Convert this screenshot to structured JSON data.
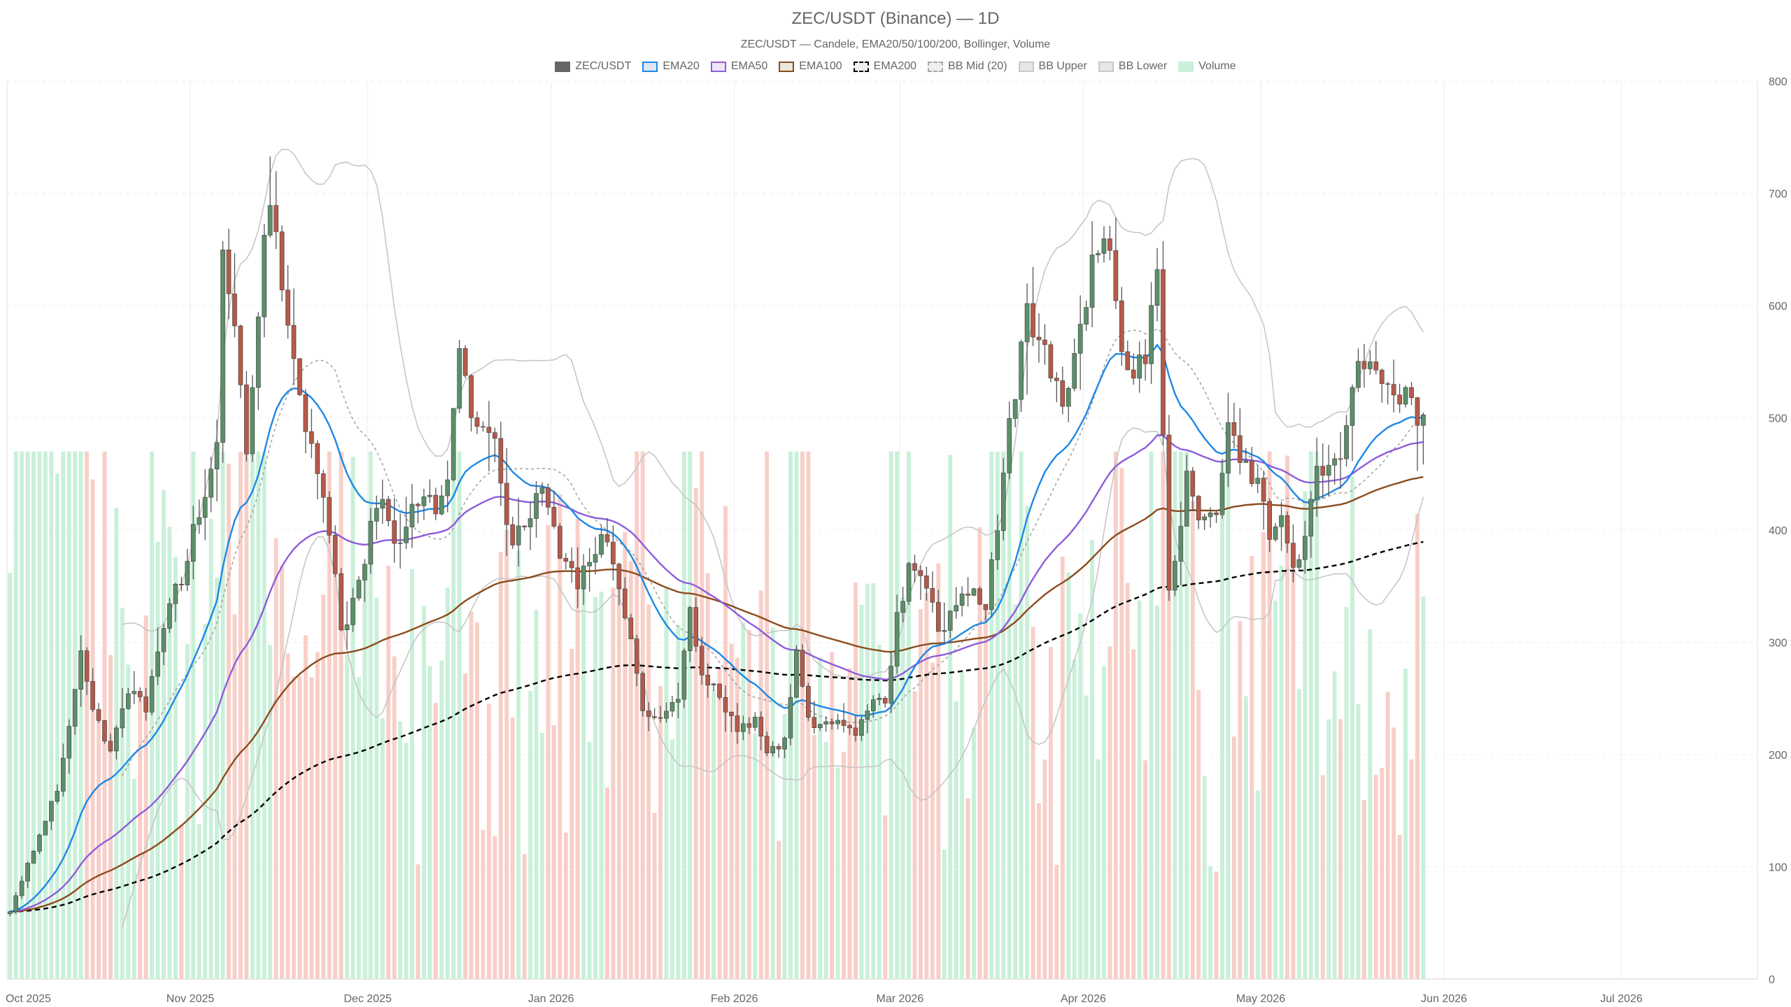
{
  "chart_data": {
    "type": "candlestick",
    "title": "ZEC/USDT (Binance) — 1D",
    "subtitle": "ZEC/USDT — Candele, EMA20/50/100/200, Bollinger, Volume",
    "legend_placement": "top-center",
    "grid": true,
    "y_ticks": [
      "0",
      "100",
      "200",
      "300",
      "400",
      "500",
      "600",
      "700",
      "800"
    ],
    "ylim": [
      0,
      800
    ],
    "x_ticks": [
      "Oct 2025",
      "Nov 2025",
      "Dec 2025",
      "Jan 2026",
      "Feb 2026",
      "Mar 2026",
      "Apr 2026",
      "May 2026",
      "Jun 2026",
      "Jul 2026"
    ],
    "x_tick_days": [
      0,
      31,
      61,
      92,
      123,
      151,
      182,
      212,
      243,
      273
    ],
    "x_range_days": [
      0,
      296
    ],
    "legend": [
      {
        "label": "ZEC/USDT",
        "fill": "#666666",
        "border": "#666666",
        "dashed": false
      },
      {
        "label": "EMA20",
        "fill": "#dde7f2",
        "border": "#1e88e5",
        "dashed": false
      },
      {
        "label": "EMA50",
        "fill": "#eee6f6",
        "border": "#8e5cdb",
        "dashed": false
      },
      {
        "label": "EMA100",
        "fill": "#ece6df",
        "border": "#8b4b1c",
        "dashed": false
      },
      {
        "label": "EMA200",
        "fill": "#f2f2f2",
        "border": "#000000",
        "dashed": true
      },
      {
        "label": "BB Mid (20)",
        "fill": "#eeeeee",
        "border": "#a8a8a8",
        "dashed": true
      },
      {
        "label": "BB Upper",
        "fill": "#e6e6e6",
        "border": "#c8c8c8",
        "dashed": false
      },
      {
        "label": "BB Lower",
        "fill": "#e6e6e6",
        "border": "#c8c8c8",
        "dashed": false
      },
      {
        "label": "Volume",
        "fill": "#c9f0d9",
        "border": "#c9f0d9",
        "dashed": false
      }
    ],
    "colors": {
      "up": "#5b8f68",
      "down": "#b55a4a",
      "wick": "#555555",
      "ema20": "#1e88e5",
      "ema50": "#8e5cdb",
      "ema100": "#8b4b1c",
      "ema200": "#000000",
      "bb_mid": "#a0a0a0",
      "bb_band": "#c4c4c4",
      "volume_up": "#c9f0d9",
      "volume_down": "#f8cfc8",
      "grid": "#ececec"
    },
    "close_anchors": [
      [
        0,
        60
      ],
      [
        5,
        130
      ],
      [
        8,
        170
      ],
      [
        12,
        290
      ],
      [
        14,
        240
      ],
      [
        17,
        200
      ],
      [
        20,
        260
      ],
      [
        23,
        240
      ],
      [
        26,
        320
      ],
      [
        29,
        360
      ],
      [
        32,
        420
      ],
      [
        35,
        470
      ],
      [
        36,
        650
      ],
      [
        38,
        580
      ],
      [
        40,
        460
      ],
      [
        42,
        580
      ],
      [
        43,
        650
      ],
      [
        44,
        700
      ],
      [
        46,
        620
      ],
      [
        49,
        520
      ],
      [
        52,
        450
      ],
      [
        55,
        360
      ],
      [
        56,
        310
      ],
      [
        59,
        350
      ],
      [
        62,
        430
      ],
      [
        64,
        410
      ],
      [
        66,
        380
      ],
      [
        69,
        430
      ],
      [
        72,
        420
      ],
      [
        74,
        450
      ],
      [
        76,
        550
      ],
      [
        79,
        490
      ],
      [
        82,
        470
      ],
      [
        85,
        385
      ],
      [
        88,
        420
      ],
      [
        90,
        445
      ],
      [
        93,
        380
      ],
      [
        96,
        350
      ],
      [
        98,
        380
      ],
      [
        101,
        390
      ],
      [
        103,
        340
      ],
      [
        105,
        300
      ],
      [
        107,
        240
      ],
      [
        110,
        230
      ],
      [
        113,
        250
      ],
      [
        115,
        330
      ],
      [
        117,
        270
      ],
      [
        120,
        250
      ],
      [
        123,
        220
      ],
      [
        126,
        230
      ],
      [
        128,
        200
      ],
      [
        131,
        210
      ],
      [
        133,
        290
      ],
      [
        135,
        230
      ],
      [
        138,
        225
      ],
      [
        141,
        230
      ],
      [
        143,
        215
      ],
      [
        146,
        250
      ],
      [
        148,
        250
      ],
      [
        150,
        320
      ],
      [
        152,
        370
      ],
      [
        155,
        350
      ],
      [
        157,
        310
      ],
      [
        159,
        320
      ],
      [
        161,
        350
      ],
      [
        163,
        340
      ],
      [
        165,
        330
      ],
      [
        167,
        400
      ],
      [
        169,
        490
      ],
      [
        172,
        590
      ],
      [
        174,
        580
      ],
      [
        176,
        540
      ],
      [
        178,
        510
      ],
      [
        181,
        580
      ],
      [
        184,
        660
      ],
      [
        186,
        640
      ],
      [
        188,
        560
      ],
      [
        190,
        540
      ],
      [
        192,
        560
      ],
      [
        194,
        630
      ],
      [
        196,
        340
      ],
      [
        197,
        370
      ],
      [
        199,
        450
      ],
      [
        201,
        410
      ],
      [
        204,
        410
      ],
      [
        206,
        500
      ],
      [
        208,
        460
      ],
      [
        211,
        440
      ],
      [
        213,
        400
      ],
      [
        215,
        410
      ],
      [
        217,
        370
      ],
      [
        219,
        390
      ],
      [
        221,
        450
      ],
      [
        224,
        460
      ],
      [
        226,
        490
      ],
      [
        228,
        540
      ],
      [
        231,
        550
      ],
      [
        233,
        530
      ],
      [
        235,
        520
      ],
      [
        237,
        510
      ],
      [
        239,
        500
      ]
    ],
    "candle_days": 240,
    "seed": 20251001
  }
}
